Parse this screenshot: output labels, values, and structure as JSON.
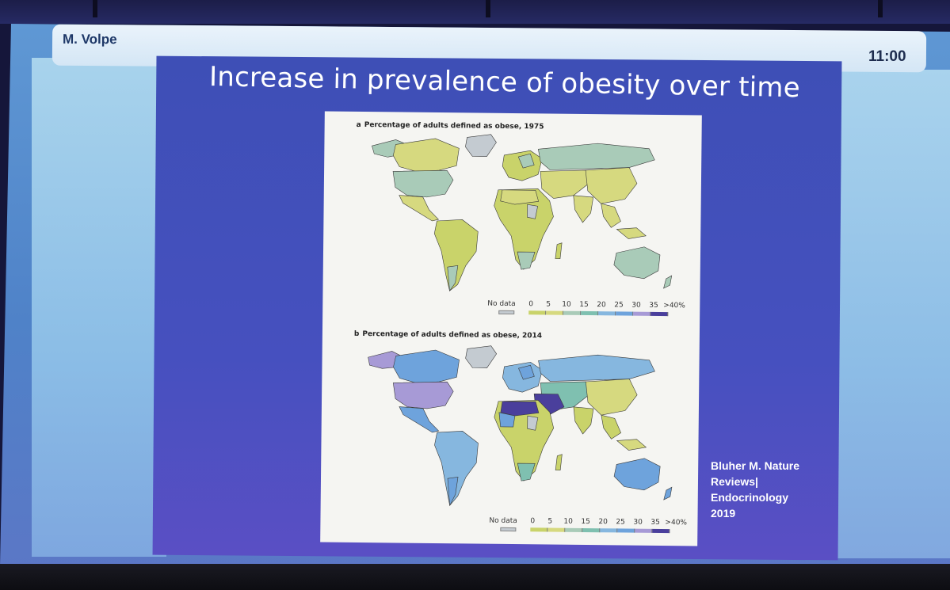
{
  "presentation": {
    "speaker": "M. Volpe",
    "clock": "11:00",
    "slide_title": "Increase in prevalence of obesity over time"
  },
  "figure": {
    "panel_a": {
      "label": "a",
      "title": "Percentage of adults defined as obese, 1975"
    },
    "panel_b": {
      "label": "b",
      "title": "Percentage of adults defined as obese, 2014"
    },
    "legend": {
      "no_data": "No data",
      "ticks": [
        "0",
        "5",
        "10",
        "15",
        "20",
        "25",
        "30",
        "35",
        ">40%"
      ],
      "colors": {
        "no_data": "#c4cbd1",
        "bins": [
          "#c9d36a",
          "#d6d97f",
          "#a9cbb8",
          "#7fc0b0",
          "#86b7df",
          "#6ea3dc",
          "#a79ad6",
          "#4a3f9c"
        ]
      }
    }
  },
  "citation": {
    "lines": [
      "Bluher M. Nature",
      "Reviews|",
      "Endocrinology",
      "2019"
    ]
  }
}
